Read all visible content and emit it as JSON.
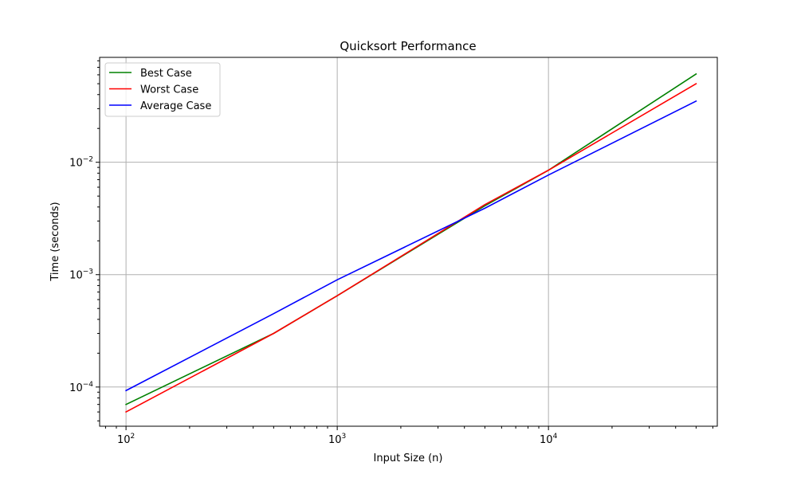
{
  "chart_data": {
    "type": "line",
    "title": "Quicksort Performance",
    "xlabel": "Input Size (n)",
    "ylabel": "Time (seconds)",
    "xscale": "log",
    "yscale": "log",
    "xlim": [
      75,
      63000
    ],
    "ylim": [
      4.48e-05,
      0.0858
    ],
    "grid": true,
    "legend_position": "top-left",
    "x_ticks": [
      {
        "base": "10",
        "exp": "2",
        "value": 100
      },
      {
        "base": "10",
        "exp": "3",
        "value": 1000
      },
      {
        "base": "10",
        "exp": "4",
        "value": 10000
      }
    ],
    "y_ticks": [
      {
        "base": "10",
        "exp": "−4",
        "value": 0.0001
      },
      {
        "base": "10",
        "exp": "−3",
        "value": 0.001
      },
      {
        "base": "10",
        "exp": "−2",
        "value": 0.01
      }
    ],
    "x": [
      100,
      500,
      1000,
      5000,
      10000,
      50000
    ],
    "series": [
      {
        "name": "Best Case",
        "color": "#008000",
        "values": [
          7e-05,
          0.0003,
          0.00065,
          0.0041,
          0.0085,
          0.061
        ]
      },
      {
        "name": "Worst Case",
        "color": "#ff0000",
        "values": [
          6e-05,
          0.0003,
          0.00065,
          0.0042,
          0.0085,
          0.05
        ]
      },
      {
        "name": "Average Case",
        "color": "#0000ff",
        "values": [
          9.3e-05,
          0.00045,
          0.0009,
          0.0039,
          0.0077,
          0.035
        ]
      }
    ]
  }
}
